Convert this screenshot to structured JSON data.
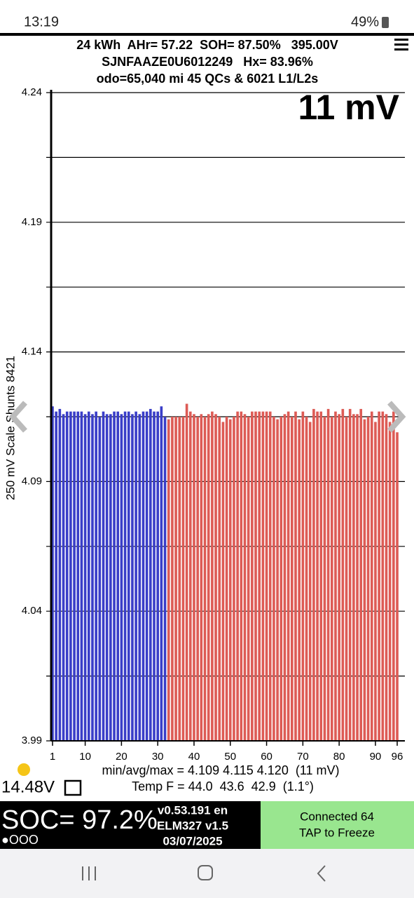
{
  "status_bar": {
    "time": "13:19",
    "battery": "49%"
  },
  "header": {
    "line1": "24 kWh  AHr= 57.22  SOH= 87.50%   395.00V",
    "line2": "SJNFAAZE0U6012249   Hx= 83.96%",
    "line3": "odo=65,040 mi 45 QCs & 6021 L1/L2s",
    "spread": "11 mV"
  },
  "chart_data": {
    "type": "bar",
    "ylabel": "250 mV Scale Shunts 8421",
    "categories": [
      1,
      2,
      3,
      4,
      5,
      6,
      7,
      8,
      9,
      10,
      11,
      12,
      13,
      14,
      15,
      16,
      17,
      18,
      19,
      20,
      21,
      22,
      23,
      24,
      25,
      26,
      27,
      28,
      29,
      30,
      31,
      32,
      33,
      34,
      35,
      36,
      37,
      38,
      39,
      40,
      41,
      42,
      43,
      44,
      45,
      46,
      47,
      48,
      49,
      50,
      51,
      52,
      53,
      54,
      55,
      56,
      57,
      58,
      59,
      60,
      61,
      62,
      63,
      64,
      65,
      66,
      67,
      68,
      69,
      70,
      71,
      72,
      73,
      74,
      75,
      76,
      77,
      78,
      79,
      80,
      81,
      82,
      83,
      84,
      85,
      86,
      87,
      88,
      89,
      90,
      91,
      92,
      93,
      94,
      95,
      96
    ],
    "values": [
      4.119,
      4.117,
      4.118,
      4.116,
      4.117,
      4.117,
      4.117,
      4.117,
      4.117,
      4.116,
      4.117,
      4.116,
      4.117,
      4.115,
      4.117,
      4.116,
      4.116,
      4.117,
      4.117,
      4.116,
      4.117,
      4.117,
      4.116,
      4.117,
      4.116,
      4.117,
      4.117,
      4.118,
      4.117,
      4.117,
      4.119,
      4.115,
      4.114,
      4.115,
      4.115,
      4.115,
      4.115,
      4.12,
      4.117,
      4.116,
      4.115,
      4.116,
      4.115,
      4.116,
      4.117,
      4.116,
      4.115,
      4.113,
      4.115,
      4.114,
      4.115,
      4.117,
      4.117,
      4.116,
      4.115,
      4.117,
      4.117,
      4.117,
      4.117,
      4.117,
      4.117,
      4.115,
      4.114,
      4.115,
      4.116,
      4.117,
      4.115,
      4.117,
      4.114,
      4.117,
      4.115,
      4.113,
      4.118,
      4.117,
      4.117,
      4.115,
      4.118,
      4.115,
      4.117,
      4.116,
      4.118,
      4.115,
      4.118,
      4.116,
      4.116,
      4.118,
      4.114,
      4.115,
      4.117,
      4.113,
      4.117,
      4.117,
      4.116,
      4.113,
      4.117,
      4.109
    ],
    "colors": [
      "#3a3ec8",
      "#3a3ec8",
      "#3a3ec8",
      "#3a3ec8",
      "#3a3ec8",
      "#3a3ec8",
      "#3a3ec8",
      "#3a3ec8",
      "#3a3ec8",
      "#3a3ec8",
      "#3a3ec8",
      "#3a3ec8",
      "#3a3ec8",
      "#3a3ec8",
      "#3a3ec8",
      "#3a3ec8",
      "#3a3ec8",
      "#3a3ec8",
      "#3a3ec8",
      "#3a3ec8",
      "#3a3ec8",
      "#3a3ec8",
      "#3a3ec8",
      "#3a3ec8",
      "#3a3ec8",
      "#3a3ec8",
      "#3a3ec8",
      "#3a3ec8",
      "#3a3ec8",
      "#3a3ec8",
      "#3a3ec8",
      "#3a3ec8",
      "#dd5b55",
      "#dd5b55",
      "#dd5b55",
      "#dd5b55",
      "#dd5b55",
      "#dd5b55",
      "#dd5b55",
      "#dd5b55",
      "#dd5b55",
      "#dd5b55",
      "#dd5b55",
      "#dd5b55",
      "#dd5b55",
      "#dd5b55",
      "#dd5b55",
      "#dd5b55",
      "#dd5b55",
      "#dd5b55",
      "#dd5b55",
      "#dd5b55",
      "#dd5b55",
      "#dd5b55",
      "#dd5b55",
      "#dd5b55",
      "#dd5b55",
      "#dd5b55",
      "#dd5b55",
      "#dd5b55",
      "#dd5b55",
      "#dd5b55",
      "#dd5b55",
      "#dd5b55",
      "#dd5b55",
      "#dd5b55",
      "#dd5b55",
      "#dd5b55",
      "#dd5b55",
      "#dd5b55",
      "#dd5b55",
      "#dd5b55",
      "#dd5b55",
      "#dd5b55",
      "#dd5b55",
      "#dd5b55",
      "#dd5b55",
      "#dd5b55",
      "#dd5b55",
      "#dd5b55",
      "#dd5b55",
      "#dd5b55",
      "#dd5b55",
      "#dd5b55",
      "#dd5b55",
      "#dd5b55",
      "#dd5b55",
      "#dd5b55",
      "#dd5b55",
      "#dd5b55",
      "#dd5b55",
      "#dd5b55",
      "#dd5b55",
      "#dd5b55",
      "#dd5b55",
      "#dd5b55",
      "#dd5b55",
      "#dd5b55"
    ],
    "xlim": [
      0.5,
      96.5
    ],
    "xticks": [
      1,
      10,
      20,
      30,
      40,
      50,
      60,
      70,
      80,
      90,
      96
    ],
    "ylim": [
      3.99,
      4.24
    ],
    "yticks": [
      3.99,
      4.04,
      4.09,
      4.14,
      4.19,
      4.24
    ],
    "minor_yticks": [
      4.015,
      4.065,
      4.115,
      4.165,
      4.215
    ],
    "grid": true
  },
  "stats": {
    "minmax": "min/avg/max = 4.109 4.115 4.120  (11 mV)",
    "temp": "Temp F = 44.0  43.6  42.9  (1.1°)",
    "voltage": "14.48V"
  },
  "bottom": {
    "soc": "SOC= 97.2%",
    "dots": "●OOO",
    "version": "v0.53.191 en",
    "adapter": "ELM327 v1.5",
    "date": "03/07/2025",
    "connected": "Connected 64",
    "freeze": "TAP to Freeze"
  }
}
